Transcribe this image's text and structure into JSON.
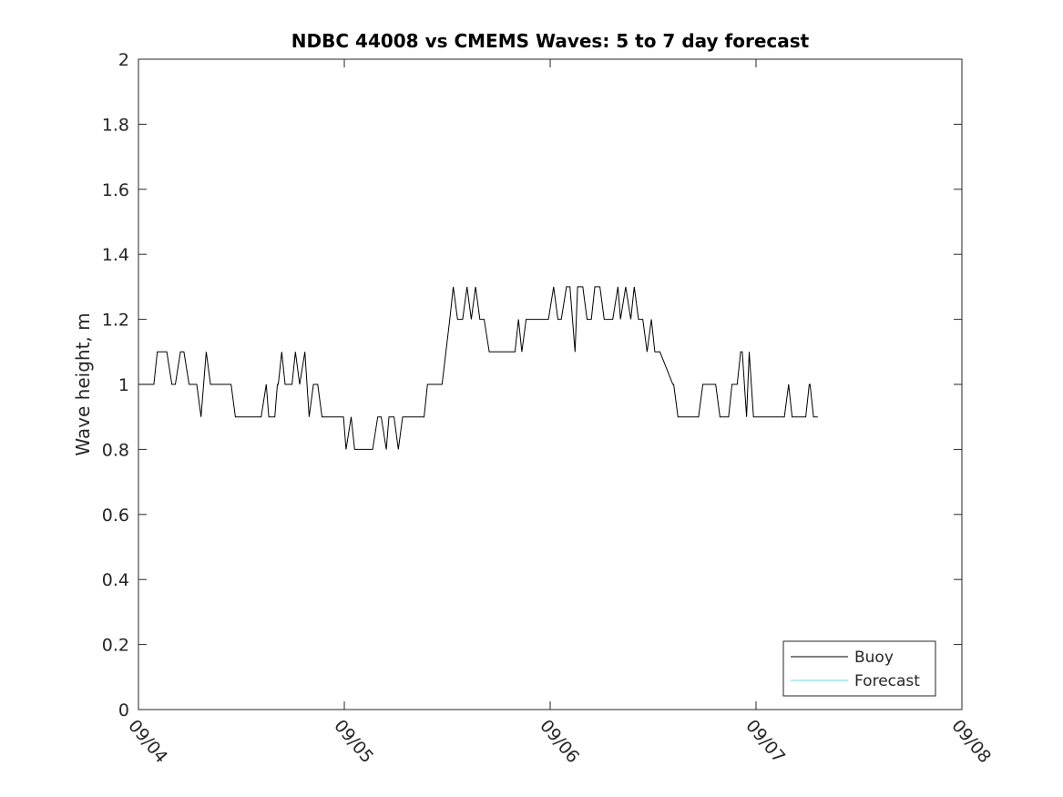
{
  "chart_data": {
    "type": "line",
    "title": "NDBC 44008 vs CMEMS Waves: 5 to 7 day forecast",
    "xlabel": "",
    "ylabel": "Wave height, m",
    "x_unit": "hours since 09/04 00:00",
    "xlim": [
      0,
      96
    ],
    "ylim": [
      0,
      2
    ],
    "xtick_values": [
      0,
      24,
      48,
      72,
      96
    ],
    "xtick_labels": [
      "09/04",
      "09/05",
      "09/06",
      "09/07",
      "09/08"
    ],
    "ytick_values": [
      0,
      0.2,
      0.4,
      0.6,
      0.8,
      1,
      1.2,
      1.4,
      1.6,
      1.8,
      2
    ],
    "ytick_labels": [
      "0",
      "0.2",
      "0.4",
      "0.6",
      "0.8",
      "1",
      "1.2",
      "1.4",
      "1.6",
      "1.8",
      "2"
    ],
    "grid": false,
    "legend_position": "bottom-right",
    "series": [
      {
        "name": "Buoy",
        "color": "#000000",
        "points": [
          [
            0.1,
            1.0
          ],
          [
            1.8,
            1.0
          ],
          [
            2.2,
            1.1
          ],
          [
            3.3,
            1.1
          ],
          [
            3.9,
            1.0
          ],
          [
            4.3,
            1.0
          ],
          [
            4.9,
            1.1
          ],
          [
            5.3,
            1.1
          ],
          [
            5.9,
            1.0
          ],
          [
            6.8,
            1.0
          ],
          [
            7.3,
            0.9
          ],
          [
            7.9,
            1.1
          ],
          [
            8.4,
            1.0
          ],
          [
            10.8,
            1.0
          ],
          [
            11.3,
            0.9
          ],
          [
            14.3,
            0.9
          ],
          [
            14.9,
            1.0
          ],
          [
            15.2,
            0.9
          ],
          [
            15.9,
            0.9
          ],
          [
            16.2,
            1.0
          ],
          [
            16.3,
            1.0
          ],
          [
            16.7,
            1.1
          ],
          [
            17.1,
            1.0
          ],
          [
            17.9,
            1.0
          ],
          [
            18.3,
            1.1
          ],
          [
            18.8,
            1.0
          ],
          [
            19.4,
            1.1
          ],
          [
            19.9,
            0.9
          ],
          [
            20.4,
            1.0
          ],
          [
            20.9,
            1.0
          ],
          [
            21.4,
            0.9
          ],
          [
            23.9,
            0.9
          ],
          [
            24.2,
            0.8
          ],
          [
            24.8,
            0.9
          ],
          [
            25.2,
            0.8
          ],
          [
            27.3,
            0.8
          ],
          [
            27.9,
            0.9
          ],
          [
            28.3,
            0.9
          ],
          [
            28.9,
            0.8
          ],
          [
            29.2,
            0.9
          ],
          [
            29.8,
            0.9
          ],
          [
            30.3,
            0.8
          ],
          [
            30.8,
            0.9
          ],
          [
            33.3,
            0.9
          ],
          [
            33.7,
            1.0
          ],
          [
            35.4,
            1.0
          ],
          [
            36.3,
            1.2
          ],
          [
            36.7,
            1.3
          ],
          [
            37.2,
            1.2
          ],
          [
            37.8,
            1.2
          ],
          [
            38.3,
            1.3
          ],
          [
            38.8,
            1.2
          ],
          [
            39.3,
            1.3
          ],
          [
            39.8,
            1.2
          ],
          [
            40.3,
            1.2
          ],
          [
            40.9,
            1.1
          ],
          [
            43.9,
            1.1
          ],
          [
            44.3,
            1.2
          ],
          [
            44.7,
            1.1
          ],
          [
            45.2,
            1.2
          ],
          [
            47.8,
            1.2
          ],
          [
            48.4,
            1.3
          ],
          [
            48.9,
            1.2
          ],
          [
            49.3,
            1.2
          ],
          [
            49.9,
            1.3
          ],
          [
            50.3,
            1.3
          ],
          [
            50.9,
            1.1
          ],
          [
            51.2,
            1.3
          ],
          [
            51.8,
            1.3
          ],
          [
            52.3,
            1.2
          ],
          [
            52.8,
            1.2
          ],
          [
            53.2,
            1.3
          ],
          [
            53.8,
            1.3
          ],
          [
            54.3,
            1.2
          ],
          [
            55.3,
            1.2
          ],
          [
            55.9,
            1.3
          ],
          [
            56.2,
            1.2
          ],
          [
            56.8,
            1.3
          ],
          [
            57.4,
            1.2
          ],
          [
            57.8,
            1.3
          ],
          [
            58.3,
            1.2
          ],
          [
            58.8,
            1.2
          ],
          [
            59.3,
            1.1
          ],
          [
            59.8,
            1.2
          ],
          [
            60.2,
            1.1
          ],
          [
            60.8,
            1.1
          ],
          [
            62.3,
            1.0
          ],
          [
            62.4,
            1.0
          ],
          [
            62.9,
            0.9
          ],
          [
            65.3,
            0.9
          ],
          [
            65.8,
            1.0
          ],
          [
            67.3,
            1.0
          ],
          [
            67.8,
            0.9
          ],
          [
            68.8,
            0.9
          ],
          [
            69.2,
            1.0
          ],
          [
            69.8,
            1.0
          ],
          [
            70.2,
            1.1
          ],
          [
            70.4,
            1.1
          ],
          [
            70.9,
            0.9
          ],
          [
            71.2,
            1.1
          ],
          [
            71.7,
            0.9
          ],
          [
            75.3,
            0.9
          ],
          [
            75.8,
            1.0
          ],
          [
            76.2,
            0.9
          ],
          [
            77.8,
            0.9
          ],
          [
            78.2,
            1.0
          ],
          [
            78.3,
            1.0
          ],
          [
            78.7,
            0.9
          ],
          [
            79.2,
            0.9
          ]
        ]
      },
      {
        "name": "Forecast",
        "color": "#6fd6e6",
        "points": []
      }
    ]
  }
}
